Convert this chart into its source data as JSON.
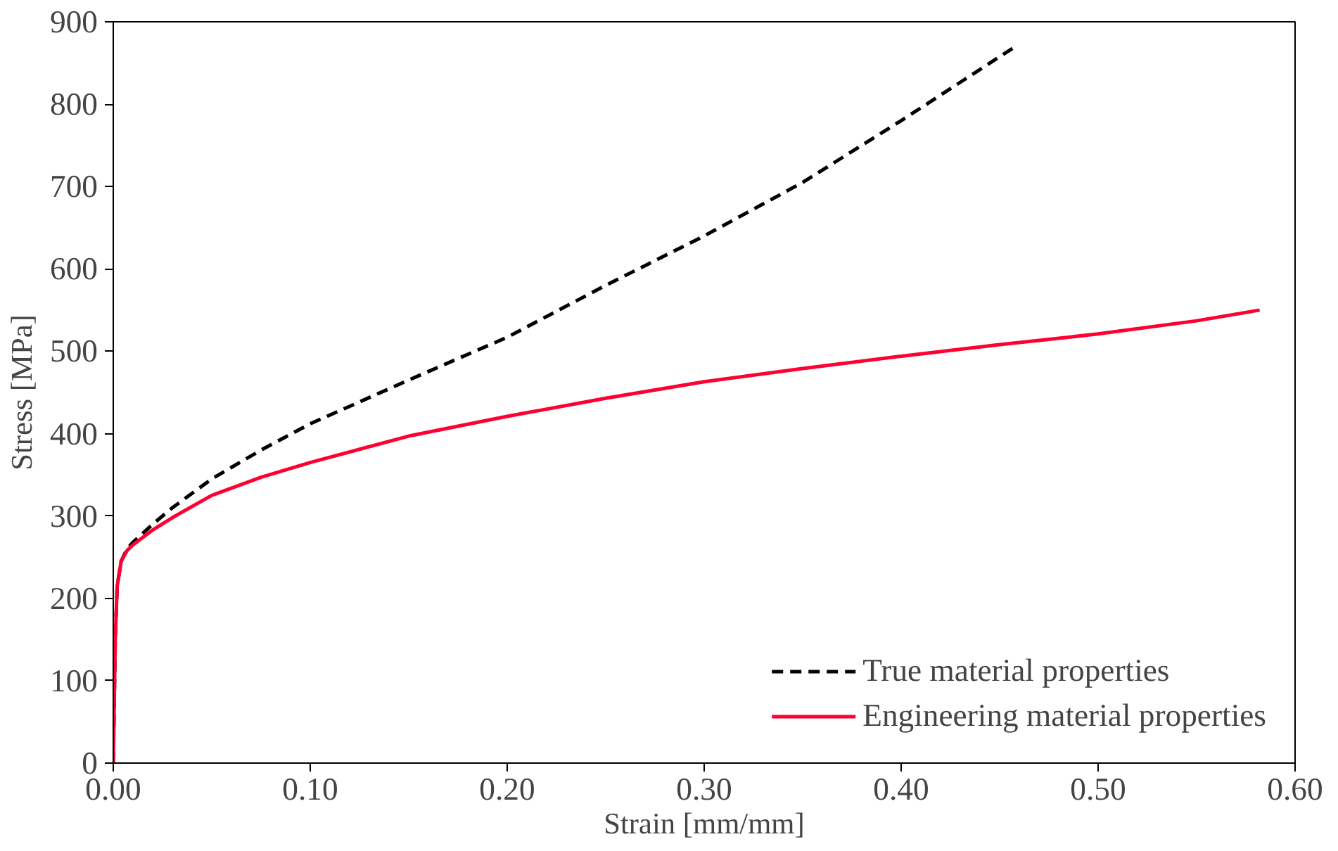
{
  "chart_data": {
    "type": "line",
    "xlabel": "Strain [mm/mm]",
    "ylabel": "Stress [MPa]",
    "xlim": [
      0,
      0.6
    ],
    "ylim": [
      0,
      900
    ],
    "xticks": [
      {
        "value": 0,
        "label": "0.00"
      },
      {
        "value": 0.1,
        "label": "0.10"
      },
      {
        "value": 0.2,
        "label": "0.20"
      },
      {
        "value": 0.3,
        "label": "0.30"
      },
      {
        "value": 0.4,
        "label": "0.40"
      },
      {
        "value": 0.5,
        "label": "0.50"
      },
      {
        "value": 0.6,
        "label": "0.60"
      }
    ],
    "yticks": [
      0,
      100,
      200,
      300,
      400,
      500,
      600,
      700,
      800,
      900
    ],
    "grid": false,
    "legend": "bottom right",
    "marker": "none",
    "series": [
      {
        "name": "True material properties",
        "color": "#000000",
        "line_style": "dashed",
        "x": [
          0,
          0.001,
          0.002,
          0.004,
          0.007,
          0.01,
          0.02,
          0.03,
          0.05,
          0.075,
          0.1,
          0.15,
          0.2,
          0.25,
          0.3,
          0.35,
          0.4,
          0.458
        ],
        "values": [
          0,
          150,
          215,
          245,
          260,
          268,
          290,
          310,
          345,
          380,
          412,
          465,
          517,
          580,
          640,
          705,
          780,
          870
        ]
      },
      {
        "name": "Engineering material properties",
        "color": "#ff0033",
        "line_style": "solid",
        "x": [
          0,
          0.001,
          0.002,
          0.004,
          0.007,
          0.01,
          0.02,
          0.03,
          0.05,
          0.075,
          0.1,
          0.15,
          0.2,
          0.25,
          0.3,
          0.35,
          0.4,
          0.45,
          0.5,
          0.55,
          0.582
        ],
        "values": [
          0,
          150,
          215,
          245,
          258,
          265,
          283,
          298,
          325,
          347,
          365,
          397,
          421,
          443,
          463,
          479,
          494,
          508,
          521,
          537,
          550
        ]
      }
    ]
  }
}
